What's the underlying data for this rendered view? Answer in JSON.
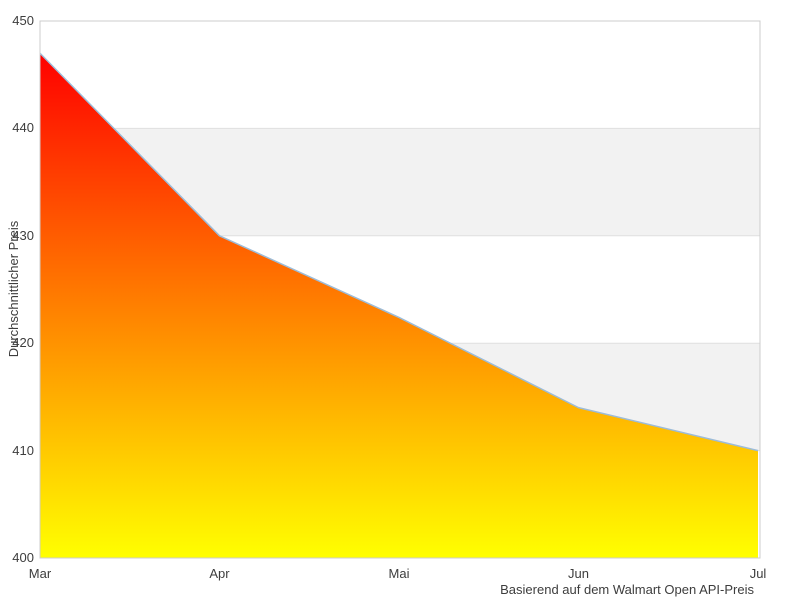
{
  "chart_data": {
    "type": "area",
    "categories": [
      "Mar",
      "Apr",
      "Mai",
      "Jun",
      "Jul"
    ],
    "values": [
      447,
      430,
      422.4,
      414,
      410
    ],
    "title": "",
    "xlabel": "",
    "ylabel": "Durchschnittlicher Preis",
    "caption": "Basierend auf dem Walmart Open API-Preis",
    "ylim": [
      400,
      450
    ],
    "yticks": [
      400,
      410,
      420,
      430,
      440,
      450
    ],
    "bands": [
      [
        410,
        420
      ],
      [
        430,
        440
      ]
    ],
    "legend": "none",
    "grid": "horizontal",
    "colors": {
      "area_gradient_top": "#ff0000",
      "area_gradient_bottom": "#ffff00",
      "line": "#9dbcd8",
      "band": "#f2f2f2",
      "gridline": "#e0e0e0",
      "frame": "#cccccc",
      "text": "#3d3d3d",
      "background": "#ffffff"
    }
  }
}
